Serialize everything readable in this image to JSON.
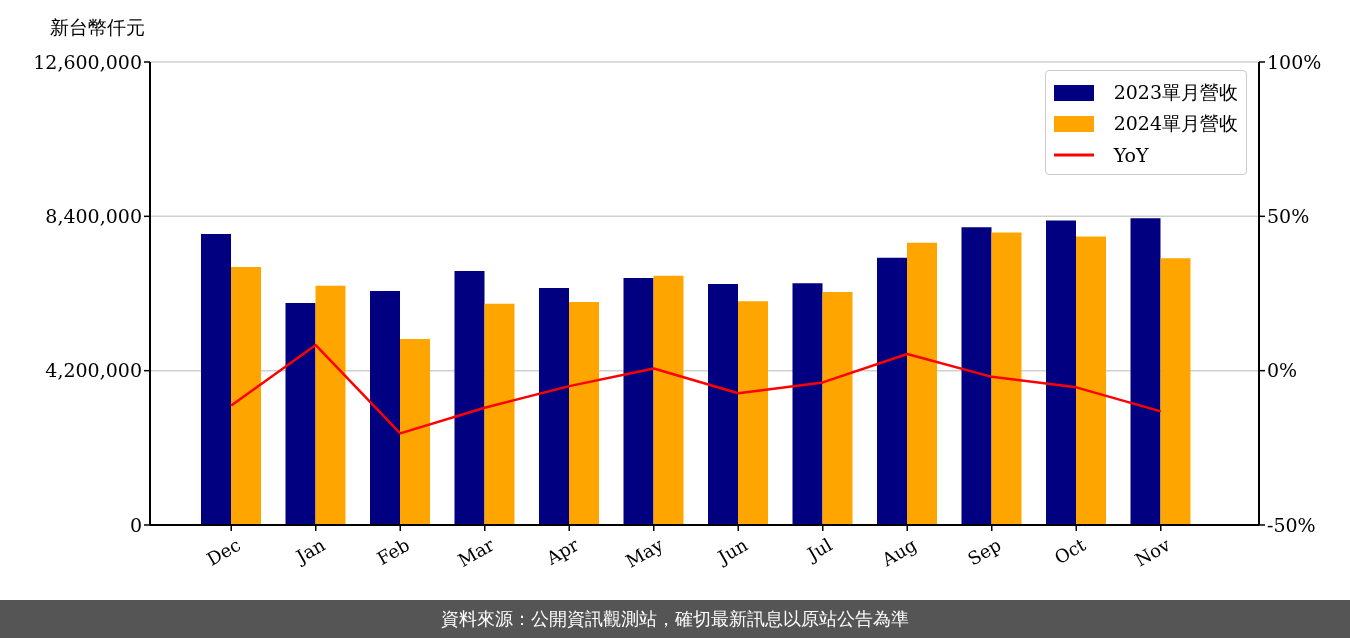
{
  "chart_data": {
    "type": "bar",
    "ylabel": "新台幣仟元",
    "annotations": [
      "資料來源：公開資訊觀測站，確切最新訊息以原站公告為準"
    ],
    "categories": [
      "Dec",
      "Jan",
      "Feb",
      "Mar",
      "Apr",
      "May",
      "Jun",
      "Jul",
      "Aug",
      "Sep",
      "Oct",
      "Nov"
    ],
    "series": [
      {
        "name": "2023單月營收",
        "color": "#000080",
        "values": [
          7920000,
          6040000,
          6370000,
          6910000,
          6450000,
          6720000,
          6560000,
          6580000,
          7270000,
          8100000,
          8290000,
          8350000
        ]
      },
      {
        "name": "2024單月營收",
        "color": "#ffa500",
        "values": [
          7020000,
          6510000,
          5060000,
          6020000,
          6070000,
          6780000,
          6090000,
          6340000,
          7680000,
          7960000,
          7850000,
          7260000
        ]
      },
      {
        "name": "YoY",
        "type": "line",
        "axis": "y2",
        "color": "#ff0000",
        "values": [
          -11.3,
          8.3,
          -20.3,
          -12.0,
          -5.0,
          0.7,
          -7.3,
          -3.8,
          5.4,
          -2.0,
          -5.4,
          -13.2
        ]
      }
    ],
    "ylim": [
      0,
      12600000
    ],
    "yticks": [
      0,
      {
        "value": 4200000,
        "label": "4,200,000"
      },
      {
        "value": 8400000,
        "label": "8,400,000"
      },
      {
        "value": 12600000,
        "label": "12,600,000"
      }
    ],
    "y2lim": [
      -50,
      100
    ],
    "y2ticks": [
      {
        "value": -50,
        "label": "-50%"
      },
      {
        "value": 0,
        "label": "0%"
      },
      {
        "value": 50,
        "label": "50%"
      },
      {
        "value": 100,
        "label": "100%"
      }
    ],
    "grid": "y",
    "legend": "top right",
    "line_style": "solid"
  }
}
